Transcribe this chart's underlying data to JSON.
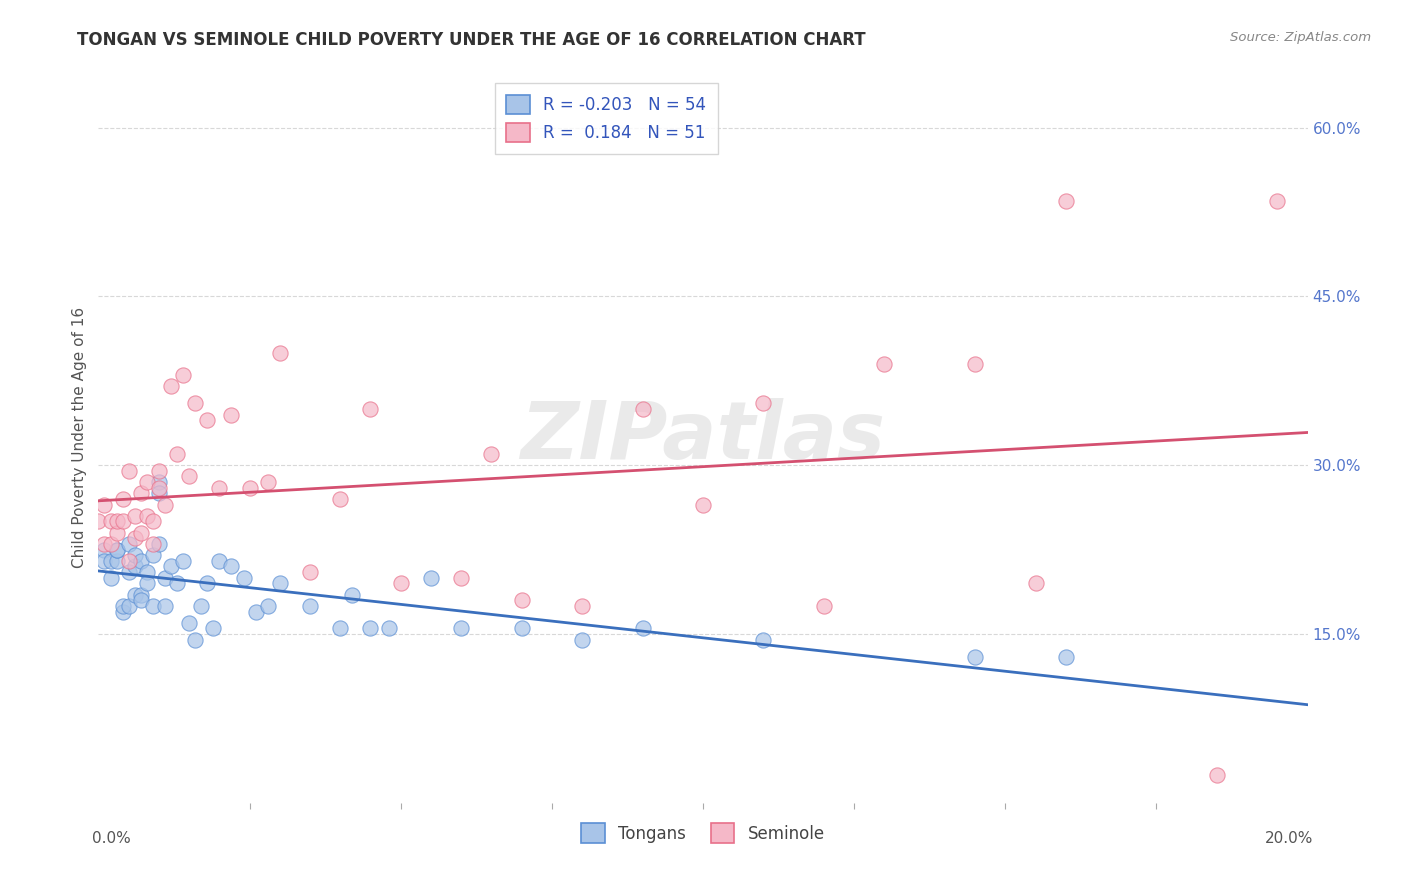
{
  "title": "TONGAN VS SEMINOLE CHILD POVERTY UNDER THE AGE OF 16 CORRELATION CHART",
  "source": "Source: ZipAtlas.com",
  "ylabel": "Child Poverty Under the Age of 16",
  "right_yticks": [
    "60.0%",
    "45.0%",
    "30.0%",
    "15.0%"
  ],
  "right_ytick_vals": [
    0.6,
    0.45,
    0.3,
    0.15
  ],
  "watermark_text": "ZIPatlas",
  "legend_tongans_R": "-0.203",
  "legend_tongans_N": "54",
  "legend_seminole_R": "0.184",
  "legend_seminole_N": "51",
  "tongans_color": "#a8c4e8",
  "tongans_edge": "#5b8fd4",
  "tongans_line": "#3a6fbd",
  "seminole_color": "#f5b8c8",
  "seminole_edge": "#e8708a",
  "seminole_line": "#d45070",
  "tongans_x": [
    0.001,
    0.001,
    0.002,
    0.002,
    0.003,
    0.003,
    0.003,
    0.004,
    0.004,
    0.005,
    0.005,
    0.005,
    0.006,
    0.006,
    0.006,
    0.007,
    0.007,
    0.007,
    0.008,
    0.008,
    0.009,
    0.009,
    0.01,
    0.01,
    0.01,
    0.011,
    0.011,
    0.012,
    0.013,
    0.014,
    0.015,
    0.016,
    0.017,
    0.018,
    0.019,
    0.02,
    0.022,
    0.024,
    0.026,
    0.028,
    0.03,
    0.035,
    0.04,
    0.042,
    0.045,
    0.048,
    0.055,
    0.06,
    0.07,
    0.08,
    0.09,
    0.11,
    0.145,
    0.16
  ],
  "tongans_y": [
    0.225,
    0.215,
    0.2,
    0.215,
    0.215,
    0.225,
    0.225,
    0.17,
    0.175,
    0.205,
    0.175,
    0.23,
    0.21,
    0.22,
    0.185,
    0.215,
    0.185,
    0.18,
    0.205,
    0.195,
    0.22,
    0.175,
    0.285,
    0.275,
    0.23,
    0.175,
    0.2,
    0.21,
    0.195,
    0.215,
    0.16,
    0.145,
    0.175,
    0.195,
    0.155,
    0.215,
    0.21,
    0.2,
    0.17,
    0.175,
    0.195,
    0.175,
    0.155,
    0.185,
    0.155,
    0.155,
    0.2,
    0.155,
    0.155,
    0.145,
    0.155,
    0.145,
    0.13,
    0.13
  ],
  "seminole_x": [
    0.0,
    0.001,
    0.001,
    0.002,
    0.002,
    0.003,
    0.003,
    0.004,
    0.004,
    0.005,
    0.005,
    0.006,
    0.006,
    0.007,
    0.007,
    0.008,
    0.008,
    0.009,
    0.009,
    0.01,
    0.01,
    0.011,
    0.012,
    0.013,
    0.014,
    0.015,
    0.016,
    0.018,
    0.02,
    0.022,
    0.025,
    0.028,
    0.03,
    0.035,
    0.04,
    0.045,
    0.05,
    0.06,
    0.065,
    0.07,
    0.08,
    0.09,
    0.1,
    0.11,
    0.12,
    0.13,
    0.145,
    0.155,
    0.16,
    0.185,
    0.195
  ],
  "seminole_y": [
    0.25,
    0.265,
    0.23,
    0.23,
    0.25,
    0.24,
    0.25,
    0.25,
    0.27,
    0.215,
    0.295,
    0.255,
    0.235,
    0.275,
    0.24,
    0.285,
    0.255,
    0.23,
    0.25,
    0.28,
    0.295,
    0.265,
    0.37,
    0.31,
    0.38,
    0.29,
    0.355,
    0.34,
    0.28,
    0.345,
    0.28,
    0.285,
    0.4,
    0.205,
    0.27,
    0.35,
    0.195,
    0.2,
    0.31,
    0.18,
    0.175,
    0.35,
    0.265,
    0.355,
    0.175,
    0.39,
    0.39,
    0.195,
    0.535,
    0.025,
    0.535
  ],
  "xmin": 0.0,
  "xmax": 0.2,
  "ymin": 0.0,
  "ymax": 0.65,
  "background_color": "#ffffff",
  "grid_color": "#d8d8d8",
  "title_color": "#333333",
  "source_color": "#888888",
  "ylabel_color": "#555555",
  "right_tick_color": "#5577cc"
}
